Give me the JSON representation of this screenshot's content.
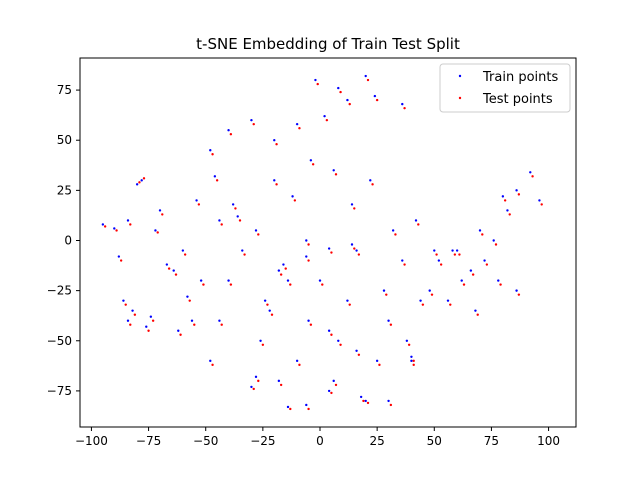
{
  "chart_data": {
    "type": "scatter",
    "title": "t-SNE Embedding of Train Test Split",
    "xlabel": "",
    "ylabel": "",
    "xlim": [
      -105,
      112
    ],
    "ylim": [
      -93,
      91
    ],
    "x_ticks": [
      -100,
      -75,
      -50,
      -25,
      0,
      25,
      50,
      75,
      100
    ],
    "y_ticks": [
      -75,
      -50,
      -25,
      0,
      25,
      50,
      75
    ],
    "x_tick_labels": [
      "−100",
      "−75",
      "−50",
      "−25",
      "0",
      "25",
      "50",
      "75",
      "100"
    ],
    "y_tick_labels": [
      "−75",
      "−50",
      "−25",
      "0",
      "25",
      "50",
      "75"
    ],
    "grid": false,
    "legend_position": "upper right",
    "series": [
      {
        "name": "Train points",
        "color": "#0000ff",
        "x": [
          -95,
          -90,
          -88,
          -86,
          -84,
          -80,
          -78,
          -72,
          -67,
          -62,
          -58,
          -52,
          -48,
          -44,
          -40,
          -36,
          -30,
          -26,
          -22,
          -18,
          -14,
          -10,
          -5,
          0,
          4,
          8,
          12,
          16,
          20,
          25,
          30,
          36,
          40,
          44,
          50,
          56,
          62,
          68,
          72,
          78,
          82,
          86,
          92,
          96,
          -82,
          -76,
          -70,
          -60,
          -54,
          -46,
          -38,
          -28,
          -20,
          -12,
          -4,
          6,
          14,
          22,
          32,
          42,
          52,
          60,
          70,
          80,
          -84,
          -74,
          -64,
          -56,
          -44,
          -34,
          -24,
          -14,
          -6,
          4,
          16,
          28,
          38,
          48,
          58,
          66,
          76,
          86,
          -48,
          -40,
          -30,
          -20,
          -10,
          2,
          12,
          24,
          36,
          -28,
          -18,
          -6,
          6,
          18,
          30,
          40,
          -16,
          -6,
          4,
          14,
          -2,
          8,
          20
        ],
        "y": [
          8,
          6,
          -8,
          -30,
          -40,
          28,
          30,
          5,
          -12,
          -45,
          -28,
          -20,
          -60,
          -40,
          -20,
          12,
          -73,
          -50,
          -35,
          -15,
          -83,
          -60,
          -40,
          -20,
          -75,
          -50,
          -30,
          -5,
          -80,
          -60,
          -40,
          -10,
          -58,
          -30,
          -5,
          -30,
          -20,
          -35,
          -10,
          -20,
          15,
          25,
          34,
          20,
          -35,
          -43,
          15,
          -5,
          20,
          32,
          18,
          5,
          30,
          22,
          40,
          35,
          18,
          30,
          5,
          10,
          -10,
          -5,
          5,
          22,
          10,
          -38,
          -15,
          -40,
          10,
          -5,
          -30,
          -20,
          0,
          -45,
          -55,
          -25,
          -50,
          -25,
          -5,
          -15,
          0,
          -25,
          45,
          55,
          60,
          50,
          58,
          62,
          70,
          72,
          68,
          -68,
          -70,
          -82,
          -70,
          -78,
          -80,
          -60,
          -12,
          -8,
          -4,
          -2,
          80,
          76,
          82
        ]
      },
      {
        "name": "Test points",
        "color": "#ff0000",
        "x": [
          -94,
          -89,
          -87,
          -85,
          -83,
          -79,
          -77,
          -71,
          -66,
          -61,
          -57,
          -51,
          -47,
          -43,
          -39,
          -35,
          -29,
          -25,
          -21,
          -17,
          -13,
          -9,
          -4,
          1,
          5,
          9,
          13,
          17,
          21,
          26,
          31,
          37,
          41,
          45,
          51,
          57,
          63,
          69,
          73,
          79,
          83,
          87,
          93,
          97,
          -81,
          -75,
          -69,
          -59,
          -53,
          -45,
          -37,
          -27,
          -19,
          -11,
          -3,
          7,
          15,
          23,
          33,
          43,
          53,
          61,
          71,
          81,
          -83,
          -73,
          -63,
          -55,
          -43,
          -33,
          -23,
          -13,
          -5,
          5,
          17,
          29,
          39,
          49,
          59,
          67,
          77,
          87,
          -47,
          -39,
          -29,
          -19,
          -9,
          3,
          13,
          25,
          37,
          -27,
          -17,
          -5,
          7,
          19,
          31,
          41,
          -15,
          -5,
          5,
          15,
          -1,
          9,
          21
        ],
        "y": [
          7,
          5,
          -10,
          -32,
          -42,
          29,
          31,
          4,
          -14,
          -47,
          -30,
          -22,
          -62,
          -42,
          -22,
          10,
          -74,
          -52,
          -37,
          -17,
          -84,
          -62,
          -42,
          -22,
          -76,
          -52,
          -32,
          -7,
          -81,
          -62,
          -42,
          -12,
          -60,
          -32,
          -7,
          -32,
          -22,
          -37,
          -12,
          -22,
          13,
          23,
          32,
          18,
          -37,
          -45,
          13,
          -7,
          18,
          30,
          16,
          3,
          28,
          20,
          38,
          33,
          16,
          28,
          3,
          8,
          -12,
          -7,
          3,
          20,
          8,
          -40,
          -17,
          -42,
          8,
          -7,
          -32,
          -22,
          -2,
          -47,
          -57,
          -27,
          -52,
          -27,
          -7,
          -17,
          -2,
          -27,
          43,
          53,
          58,
          48,
          56,
          60,
          68,
          70,
          66,
          -70,
          -72,
          -84,
          -72,
          -80,
          -82,
          -62,
          -14,
          -10,
          -6,
          -4,
          78,
          74,
          80
        ]
      }
    ]
  }
}
